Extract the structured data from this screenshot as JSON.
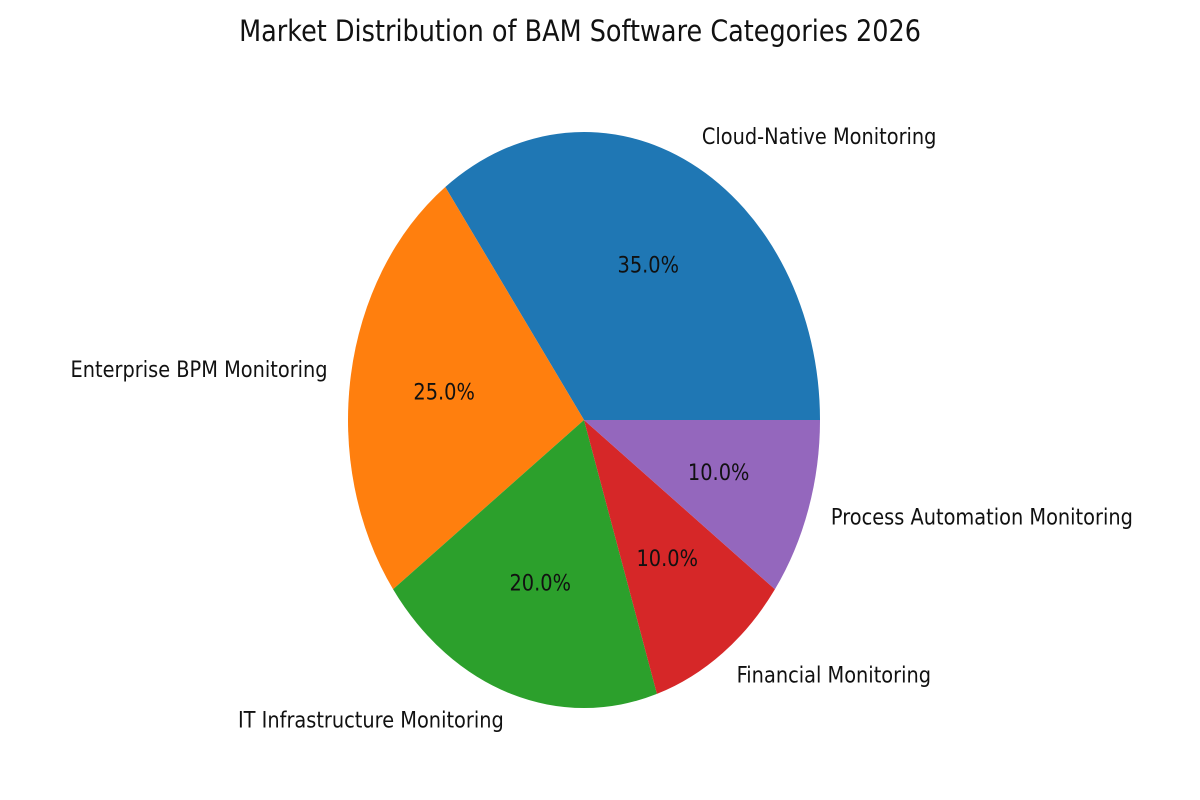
{
  "chart_data": {
    "type": "pie",
    "title": "Market Distribution of BAM Software Categories 2026",
    "slices": [
      {
        "label": "Cloud-Native Monitoring",
        "value": 35.0,
        "pct_label": "35.0%",
        "color": "#1f77b4"
      },
      {
        "label": "Enterprise BPM Monitoring",
        "value": 25.0,
        "pct_label": "25.0%",
        "color": "#ff7f0e"
      },
      {
        "label": "IT Infrastructure Monitoring",
        "value": 20.0,
        "pct_label": "20.0%",
        "color": "#2ca02c"
      },
      {
        "label": "Financial Monitoring",
        "value": 10.0,
        "pct_label": "10.0%",
        "color": "#d62728"
      },
      {
        "label": "Process Automation Monitoring",
        "value": 10.0,
        "pct_label": "10.0%",
        "color": "#9467bd"
      }
    ]
  }
}
